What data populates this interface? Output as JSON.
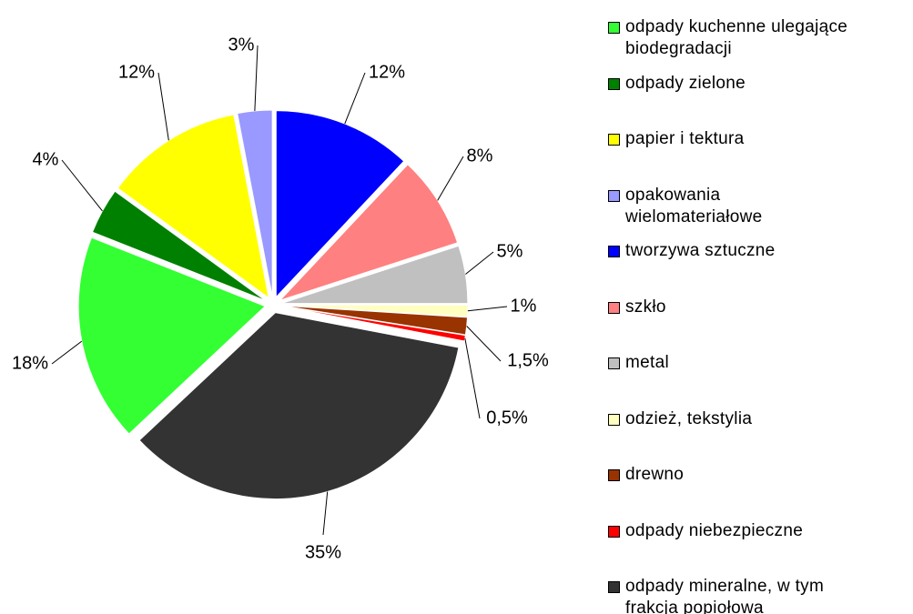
{
  "chart_data": {
    "type": "pie",
    "categories": [
      "odpady kuchenne ulegające\nbiodegradacji",
      "odpady zielone",
      "papier i tektura",
      "opakowania\nwielomateriałowe",
      "tworzywa sztuczne",
      "szkło",
      "metal",
      "odzież, tekstylia",
      "drewno",
      "odpady niebezpieczne",
      "odpady mineralne, w tym\nfrakcja popiołowa"
    ],
    "values": [
      18,
      4,
      12,
      3,
      12,
      8,
      5,
      1,
      1.5,
      0.5,
      35
    ],
    "value_labels": [
      "18%",
      "4%",
      "12%",
      "3%",
      "12%",
      "8%",
      "5%",
      "1%",
      "1,5%",
      "0,5%",
      "35%"
    ],
    "colors": [
      "#33ff33",
      "#008000",
      "#ffff00",
      "#9999ff",
      "#0000ff",
      "#ff8080",
      "#c0c0c0",
      "#ffffc0",
      "#993300",
      "#ff0000",
      "#333333"
    ],
    "legend": "right"
  }
}
